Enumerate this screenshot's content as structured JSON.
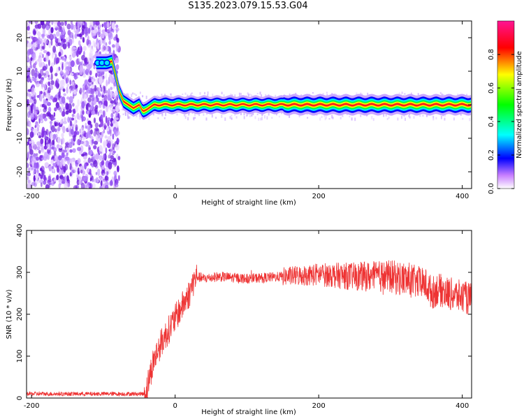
{
  "title": "S135.2023.079.15.53.G04",
  "chart_data": [
    {
      "type": "heatmap",
      "title": "S135.2023.079.15.53.G04",
      "xlabel": "Height of straight line (km)",
      "ylabel": "Frequency (Hz)",
      "xlim": [
        -207,
        413
      ],
      "ylim": [
        -25,
        25
      ],
      "x_ticks": [
        "-200",
        "0",
        "200",
        "400"
      ],
      "y_ticks": [
        "-20",
        "-10",
        "0",
        "10",
        "20"
      ],
      "colorbar": {
        "label": "Normalized spectral amplitude",
        "range": [
          0,
          1
        ],
        "ticks": [
          "0.0",
          "0.2",
          "0.4",
          "0.6",
          "0.8"
        ],
        "colors": [
          "#ffffff",
          "#a020f0",
          "#0000ff",
          "#00ffff",
          "#00ff00",
          "#ffff00",
          "#ff0000",
          "#ff1493"
        ]
      },
      "ridge": {
        "x": [
          -110,
          -95,
          -88,
          -82,
          -78,
          -72,
          -65,
          -58,
          -50,
          -45,
          -40,
          -30,
          0,
          100,
          200,
          300,
          413
        ],
        "y": [
          12.5,
          12.5,
          13,
          8,
          4,
          1,
          0,
          -1,
          0,
          -2,
          -1.5,
          0,
          0,
          0,
          0,
          0,
          0
        ]
      },
      "noise_region_x": [
        -207,
        -78
      ],
      "grid": false
    },
    {
      "type": "line",
      "xlabel": "Height of straight line (km)",
      "ylabel": "SNR (10 * v/v)",
      "xlim": [
        -207,
        413
      ],
      "ylim": [
        0,
        400
      ],
      "x_ticks": [
        "-200",
        "0",
        "200",
        "400"
      ],
      "y_ticks": [
        "0",
        "100",
        "200",
        "300",
        "400"
      ],
      "color": "#ee3333",
      "envelope": {
        "x": [
          -207,
          -43,
          -40,
          -30,
          -20,
          -10,
          0,
          10,
          20,
          25,
          30,
          40,
          60,
          100,
          150,
          200,
          250,
          300,
          330,
          350,
          358,
          365,
          380,
          413
        ],
        "y": [
          10,
          10,
          20,
          90,
          130,
          160,
          190,
          220,
          250,
          275,
          290,
          285,
          290,
          285,
          290,
          295,
          290,
          290,
          280,
          270,
          250,
          260,
          250,
          235
        ]
      },
      "grid": false
    }
  ]
}
